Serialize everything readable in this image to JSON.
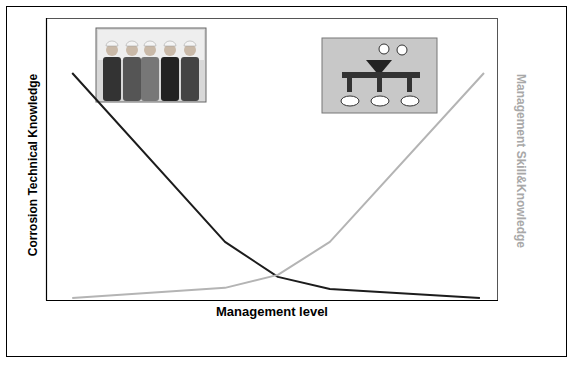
{
  "chart_data": {
    "type": "line",
    "xlabel": "Management level",
    "ylabel": "Corrosion Technical Knowledge",
    "y2label": "Management Skill&Knowledge",
    "xlim": [
      0,
      100
    ],
    "ylim": [
      0,
      100
    ],
    "y2lim": [
      0,
      100
    ],
    "tick_labels": false,
    "grid": false,
    "series": [
      {
        "color": "#1c1c1c",
        "x": [
          5.8,
          39.6,
          51.3,
          62.8,
          96.0
        ],
        "values": [
          80.5,
          20.6,
          8.2,
          3.9,
          0.7
        ]
      },
      {
        "color": "#b4b4b4",
        "axis": "y2",
        "x": [
          5.8,
          39.6,
          51.3,
          62.8,
          96.9
        ],
        "values": [
          0.7,
          4.3,
          8.9,
          20.6,
          80.5
        ]
      }
    ]
  }
}
